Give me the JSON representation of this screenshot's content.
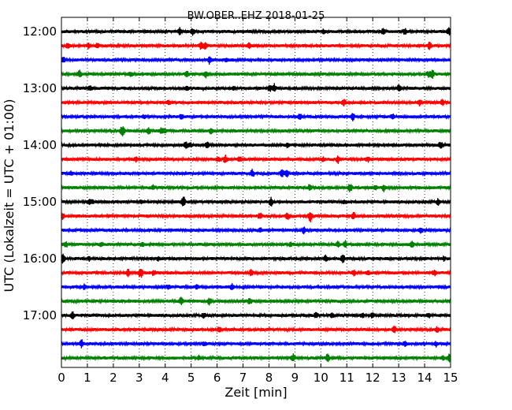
{
  "chart_data": {
    "type": "line",
    "title": "BW.OBER..EHZ 2018-01-25",
    "xlabel": "Zeit  [min]",
    "ylabel": "UTC (Lokalzeit = UTC + 01:00)",
    "xlim": [
      0,
      15
    ],
    "x_ticks": [
      "0",
      "1",
      "2",
      "3",
      "4",
      "5",
      "6",
      "7",
      "8",
      "9",
      "10",
      "11",
      "12",
      "13",
      "14",
      "15"
    ],
    "y_ticks": [
      "12:00",
      "13:00",
      "14:00",
      "15:00",
      "16:00",
      "17:00"
    ],
    "grid": "vertical dotted lines at each minute",
    "trace_colors": [
      "#000000",
      "#ff0000",
      "#0000ff",
      "#008000"
    ],
    "rows": [
      {
        "start": "12:00",
        "color": "#000000"
      },
      {
        "start": "12:15",
        "color": "#ff0000"
      },
      {
        "start": "12:30",
        "color": "#0000ff"
      },
      {
        "start": "12:45",
        "color": "#008000"
      },
      {
        "start": "13:00",
        "color": "#000000"
      },
      {
        "start": "13:15",
        "color": "#ff0000"
      },
      {
        "start": "13:30",
        "color": "#0000ff"
      },
      {
        "start": "13:45",
        "color": "#008000"
      },
      {
        "start": "14:00",
        "color": "#000000"
      },
      {
        "start": "14:15",
        "color": "#ff0000"
      },
      {
        "start": "14:30",
        "color": "#0000ff"
      },
      {
        "start": "14:45",
        "color": "#008000"
      },
      {
        "start": "15:00",
        "color": "#000000"
      },
      {
        "start": "15:15",
        "color": "#ff0000"
      },
      {
        "start": "15:30",
        "color": "#0000ff"
      },
      {
        "start": "15:45",
        "color": "#008000"
      },
      {
        "start": "16:00",
        "color": "#000000"
      },
      {
        "start": "16:15",
        "color": "#ff0000"
      },
      {
        "start": "16:30",
        "color": "#0000ff"
      },
      {
        "start": "16:45",
        "color": "#008000"
      },
      {
        "start": "17:00",
        "color": "#000000"
      },
      {
        "start": "17:15",
        "color": "#ff0000"
      },
      {
        "start": "17:30",
        "color": "#0000ff"
      },
      {
        "start": "17:45",
        "color": "#008000"
      }
    ]
  }
}
